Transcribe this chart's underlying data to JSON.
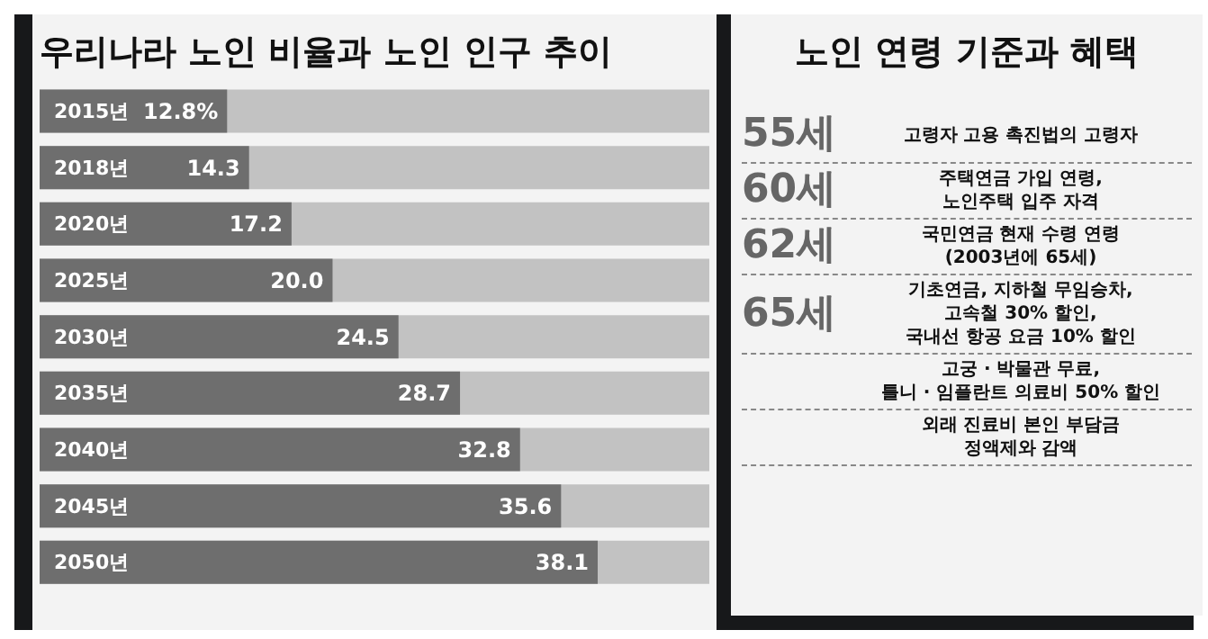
{
  "chart_data": [
    {
      "type": "bar",
      "orientation": "horizontal",
      "title": "우리나라 노인 비율과 노인 인구 추이",
      "color": "#6e6e6e",
      "categories": [
        "2015년",
        "2018년",
        "2020년",
        "2025년",
        "2030년",
        "2035년",
        "2040년",
        "2045년",
        "2050년"
      ],
      "values": [
        12.8,
        14.3,
        17.2,
        20.0,
        24.5,
        28.7,
        32.8,
        35.6,
        38.1
      ],
      "value_labels": [
        "12.8%",
        "14.3",
        "17.2",
        "20.0",
        "24.5",
        "28.7",
        "32.8",
        "35.6",
        "38.1"
      ]
    },
    {
      "type": "other",
      "title": "노인 연령 기준과 혜택",
      "categories": [
        "55세",
        "60세",
        "62세",
        "65세",
        null,
        null
      ],
      "annotations": [
        "고령자 고용 촉진법의 고령자",
        "주택연금 가입 연령,\n노인주택 입주 자격",
        "국민연금 현재 수령 연령\n(2003년에 65세)",
        "기초연금, 지하철 무임승차,\n고속철 30% 할인,\n국내선 항공 요금 10% 할인",
        "고궁 · 박물관 무료,\n틀니 · 임플란트 의료비 50% 할인",
        "외래 진료비 본인 부담금\n정액제와 감액"
      ]
    }
  ]
}
